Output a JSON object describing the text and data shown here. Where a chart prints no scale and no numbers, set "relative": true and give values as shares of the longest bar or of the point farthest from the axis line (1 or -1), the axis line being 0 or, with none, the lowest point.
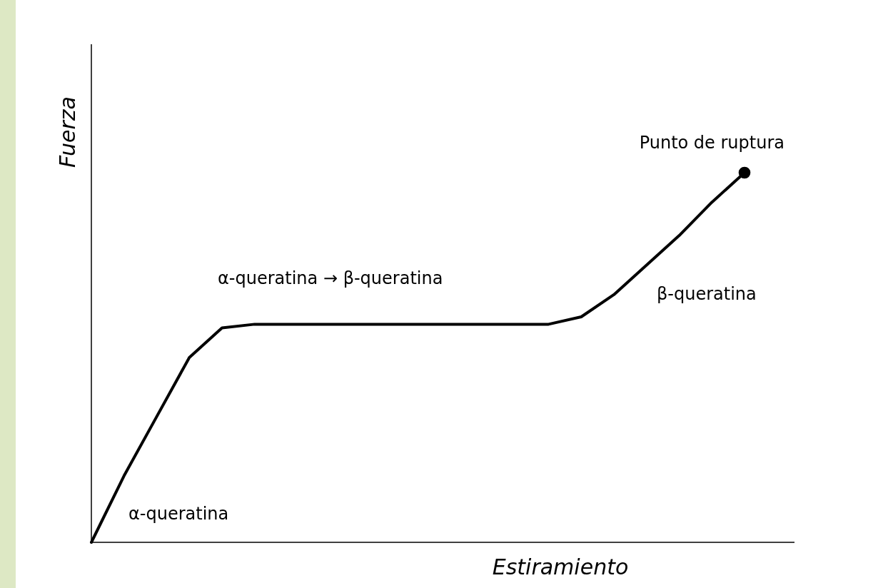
{
  "chart_data": {
    "type": "line",
    "relative": true,
    "xlabel": "Estiramiento",
    "ylabel": "Fuerza",
    "categories": [
      null,
      null,
      null,
      null,
      null,
      null,
      null,
      null,
      null,
      null,
      null,
      null,
      null,
      null,
      null,
      null,
      null,
      null,
      null,
      null,
      null
    ],
    "series": [
      {
        "color": "#000000",
        "values": [
          0,
          0.18,
          0.34,
          0.5,
          0.58,
          0.59,
          0.59,
          0.59,
          0.59,
          0.59,
          0.59,
          0.59,
          0.59,
          0.59,
          0.59,
          0.61,
          0.67,
          0.75,
          0.83,
          0.92,
          1
        ]
      }
    ],
    "annotations": [
      "Punto de ruptura",
      "α-queratina → β-queratina",
      "β-queratina",
      "α-queratina"
    ]
  }
}
